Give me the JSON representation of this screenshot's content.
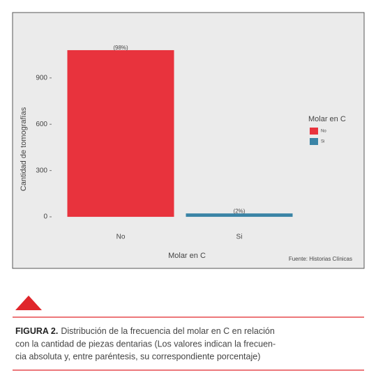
{
  "chart_data": {
    "type": "bar",
    "categories": [
      "No",
      "Si"
    ],
    "values": [
      1080,
      22
    ],
    "bar_labels": [
      "(98%)",
      "(2%)"
    ],
    "colors": [
      "#e8333d",
      "#3a84a6"
    ],
    "x_label": "Molar en C",
    "y_label": "Cantidad de tomografías",
    "ylim": [
      -54,
      1134
    ],
    "yticks": [
      0,
      300,
      600,
      900
    ],
    "legend": {
      "title": "Molar en C",
      "position": "right"
    },
    "source": "Fuente: Historias Clínicas"
  },
  "figure": {
    "label": "FIGURA 2.",
    "caption_lines": [
      "Distribución de la frecuencia del molar en C en relación",
      "con la cantidad de piezas dentarias (Los valores indican la frecuen-",
      "cia absoluta y, entre paréntesis, su correspondiente porcentaje)"
    ]
  }
}
